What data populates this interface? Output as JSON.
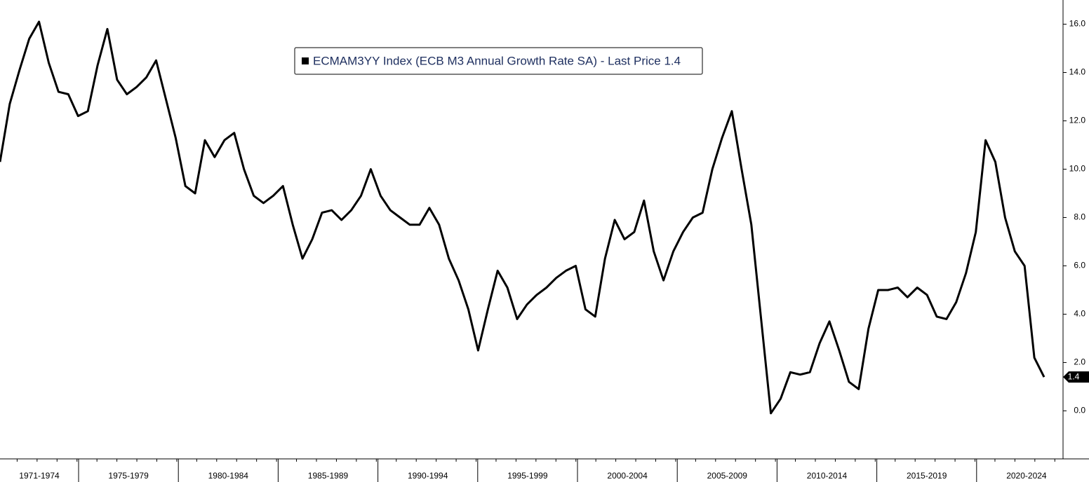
{
  "chart_data": {
    "type": "line",
    "x_labels": [
      "1971-1974",
      "1975-1979",
      "1980-1984",
      "1985-1989",
      "1990-1994",
      "1995-1999",
      "2000-2004",
      "2005-2009",
      "2010-2014",
      "2015-2019",
      "2020-2024"
    ],
    "series": [
      {
        "name": "ECMAM3YY Index (ECB M3 Annual Growth Rate SA) - Last Price 1.4",
        "color": "#000000",
        "values": [
          10.3,
          12.7,
          14.1,
          15.4,
          16.1,
          14.4,
          13.2,
          13.1,
          12.2,
          12.4,
          14.3,
          15.8,
          13.7,
          13.1,
          13.4,
          13.8,
          14.5,
          12.9,
          11.3,
          9.3,
          9.0,
          11.2,
          10.5,
          11.2,
          11.5,
          10.0,
          8.9,
          8.6,
          8.9,
          9.3,
          7.7,
          6.3,
          7.1,
          8.2,
          8.3,
          7.9,
          8.3,
          8.9,
          10.0,
          8.9,
          8.3,
          8.0,
          7.7,
          7.7,
          8.4,
          7.7,
          6.3,
          5.4,
          4.2,
          2.5,
          4.2,
          5.8,
          5.1,
          3.8,
          4.4,
          4.8,
          5.1,
          5.5,
          5.8,
          6.0,
          4.2,
          3.9,
          6.3,
          7.9,
          7.1,
          7.4,
          8.7,
          6.6,
          5.4,
          6.6,
          7.4,
          8.0,
          8.2,
          10.0,
          11.3,
          12.4,
          10.0,
          7.7,
          3.8,
          -0.1,
          0.5,
          1.6,
          1.5,
          1.6,
          2.8,
          3.7,
          2.5,
          1.2,
          0.9,
          3.4,
          5.0,
          5.0,
          5.1,
          4.7,
          5.1,
          4.8,
          3.9,
          3.8,
          4.5,
          5.7,
          7.4,
          11.2,
          10.3,
          8.0,
          6.6,
          6.0,
          2.2,
          1.4
        ]
      }
    ],
    "last_price": 1.4,
    "ylim": [
      -1.9,
      17.0
    ],
    "yticks": [
      {
        "value": 0,
        "label": "0.0"
      },
      {
        "value": 2,
        "label": "2.0"
      },
      {
        "value": 4,
        "label": "4.0"
      },
      {
        "value": 6,
        "label": "6.0"
      },
      {
        "value": 8,
        "label": "8.0"
      },
      {
        "value": 10,
        "label": "10.0"
      },
      {
        "value": 12,
        "label": "12.0"
      },
      {
        "value": 14,
        "label": "14.0"
      },
      {
        "value": 16,
        "label": "16.0"
      }
    ]
  }
}
